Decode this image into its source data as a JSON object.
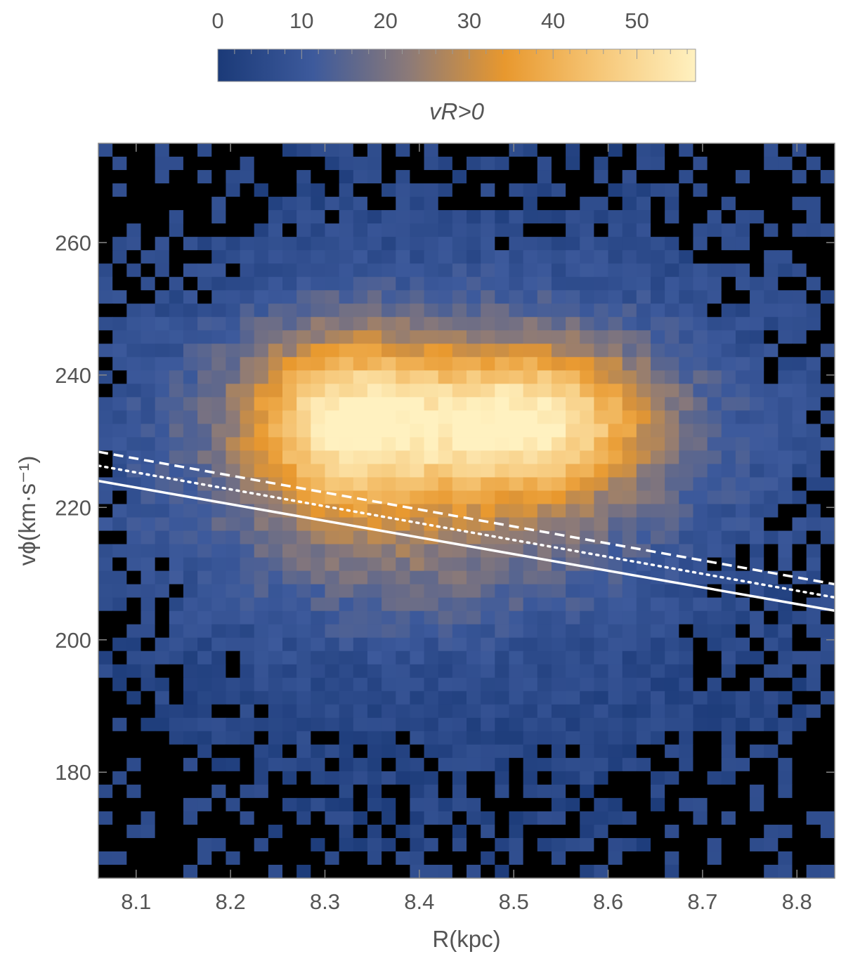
{
  "chart_data": {
    "type": "heatmap",
    "title": "",
    "xlabel": "R(kpc)",
    "ylabel": "vϕ(km·s⁻¹)",
    "xlim": [
      8.06,
      8.84
    ],
    "ylim": [
      164,
      275
    ],
    "x_ticks": [
      8.1,
      8.2,
      8.3,
      8.4,
      8.5,
      8.6,
      8.7,
      8.8
    ],
    "y_ticks": [
      180,
      200,
      220,
      240,
      260
    ],
    "grid": false,
    "colorbar": {
      "label": "vR>0",
      "position": "top",
      "range": [
        0,
        57
      ],
      "ticks": [
        0,
        10,
        20,
        30,
        40,
        50
      ],
      "colors": [
        "#1b3a78",
        "#3d5a9c",
        "#8c7a78",
        "#e8982e",
        "#f6c778",
        "#fff1c0"
      ],
      "empty_bin_color": "#000000"
    },
    "bins": {
      "nx": 52,
      "ny": 55
    },
    "density_peaks": [
      {
        "x": 8.32,
        "y": 233,
        "amp": 38,
        "sx": 0.075,
        "sy": 9
      },
      {
        "x": 8.52,
        "y": 233,
        "amp": 40,
        "sx": 0.09,
        "sy": 8
      },
      {
        "x": 8.42,
        "y": 230,
        "amp": 16,
        "sx": 0.22,
        "sy": 16
      },
      {
        "x": 8.4,
        "y": 212,
        "amp": 8,
        "sx": 0.14,
        "sy": 9
      }
    ],
    "series": [
      {
        "style": "solid",
        "color": "#ffffff",
        "x": [
          8.06,
          8.84
        ],
        "y": [
          224.0,
          204.4
        ]
      },
      {
        "style": "dotted",
        "color": "#ffffff",
        "x": [
          8.06,
          8.84
        ],
        "y": [
          226.3,
          206.4
        ]
      },
      {
        "style": "dashed",
        "color": "#ffffff",
        "x": [
          8.06,
          8.84
        ],
        "y": [
          228.4,
          208.4
        ]
      }
    ]
  }
}
